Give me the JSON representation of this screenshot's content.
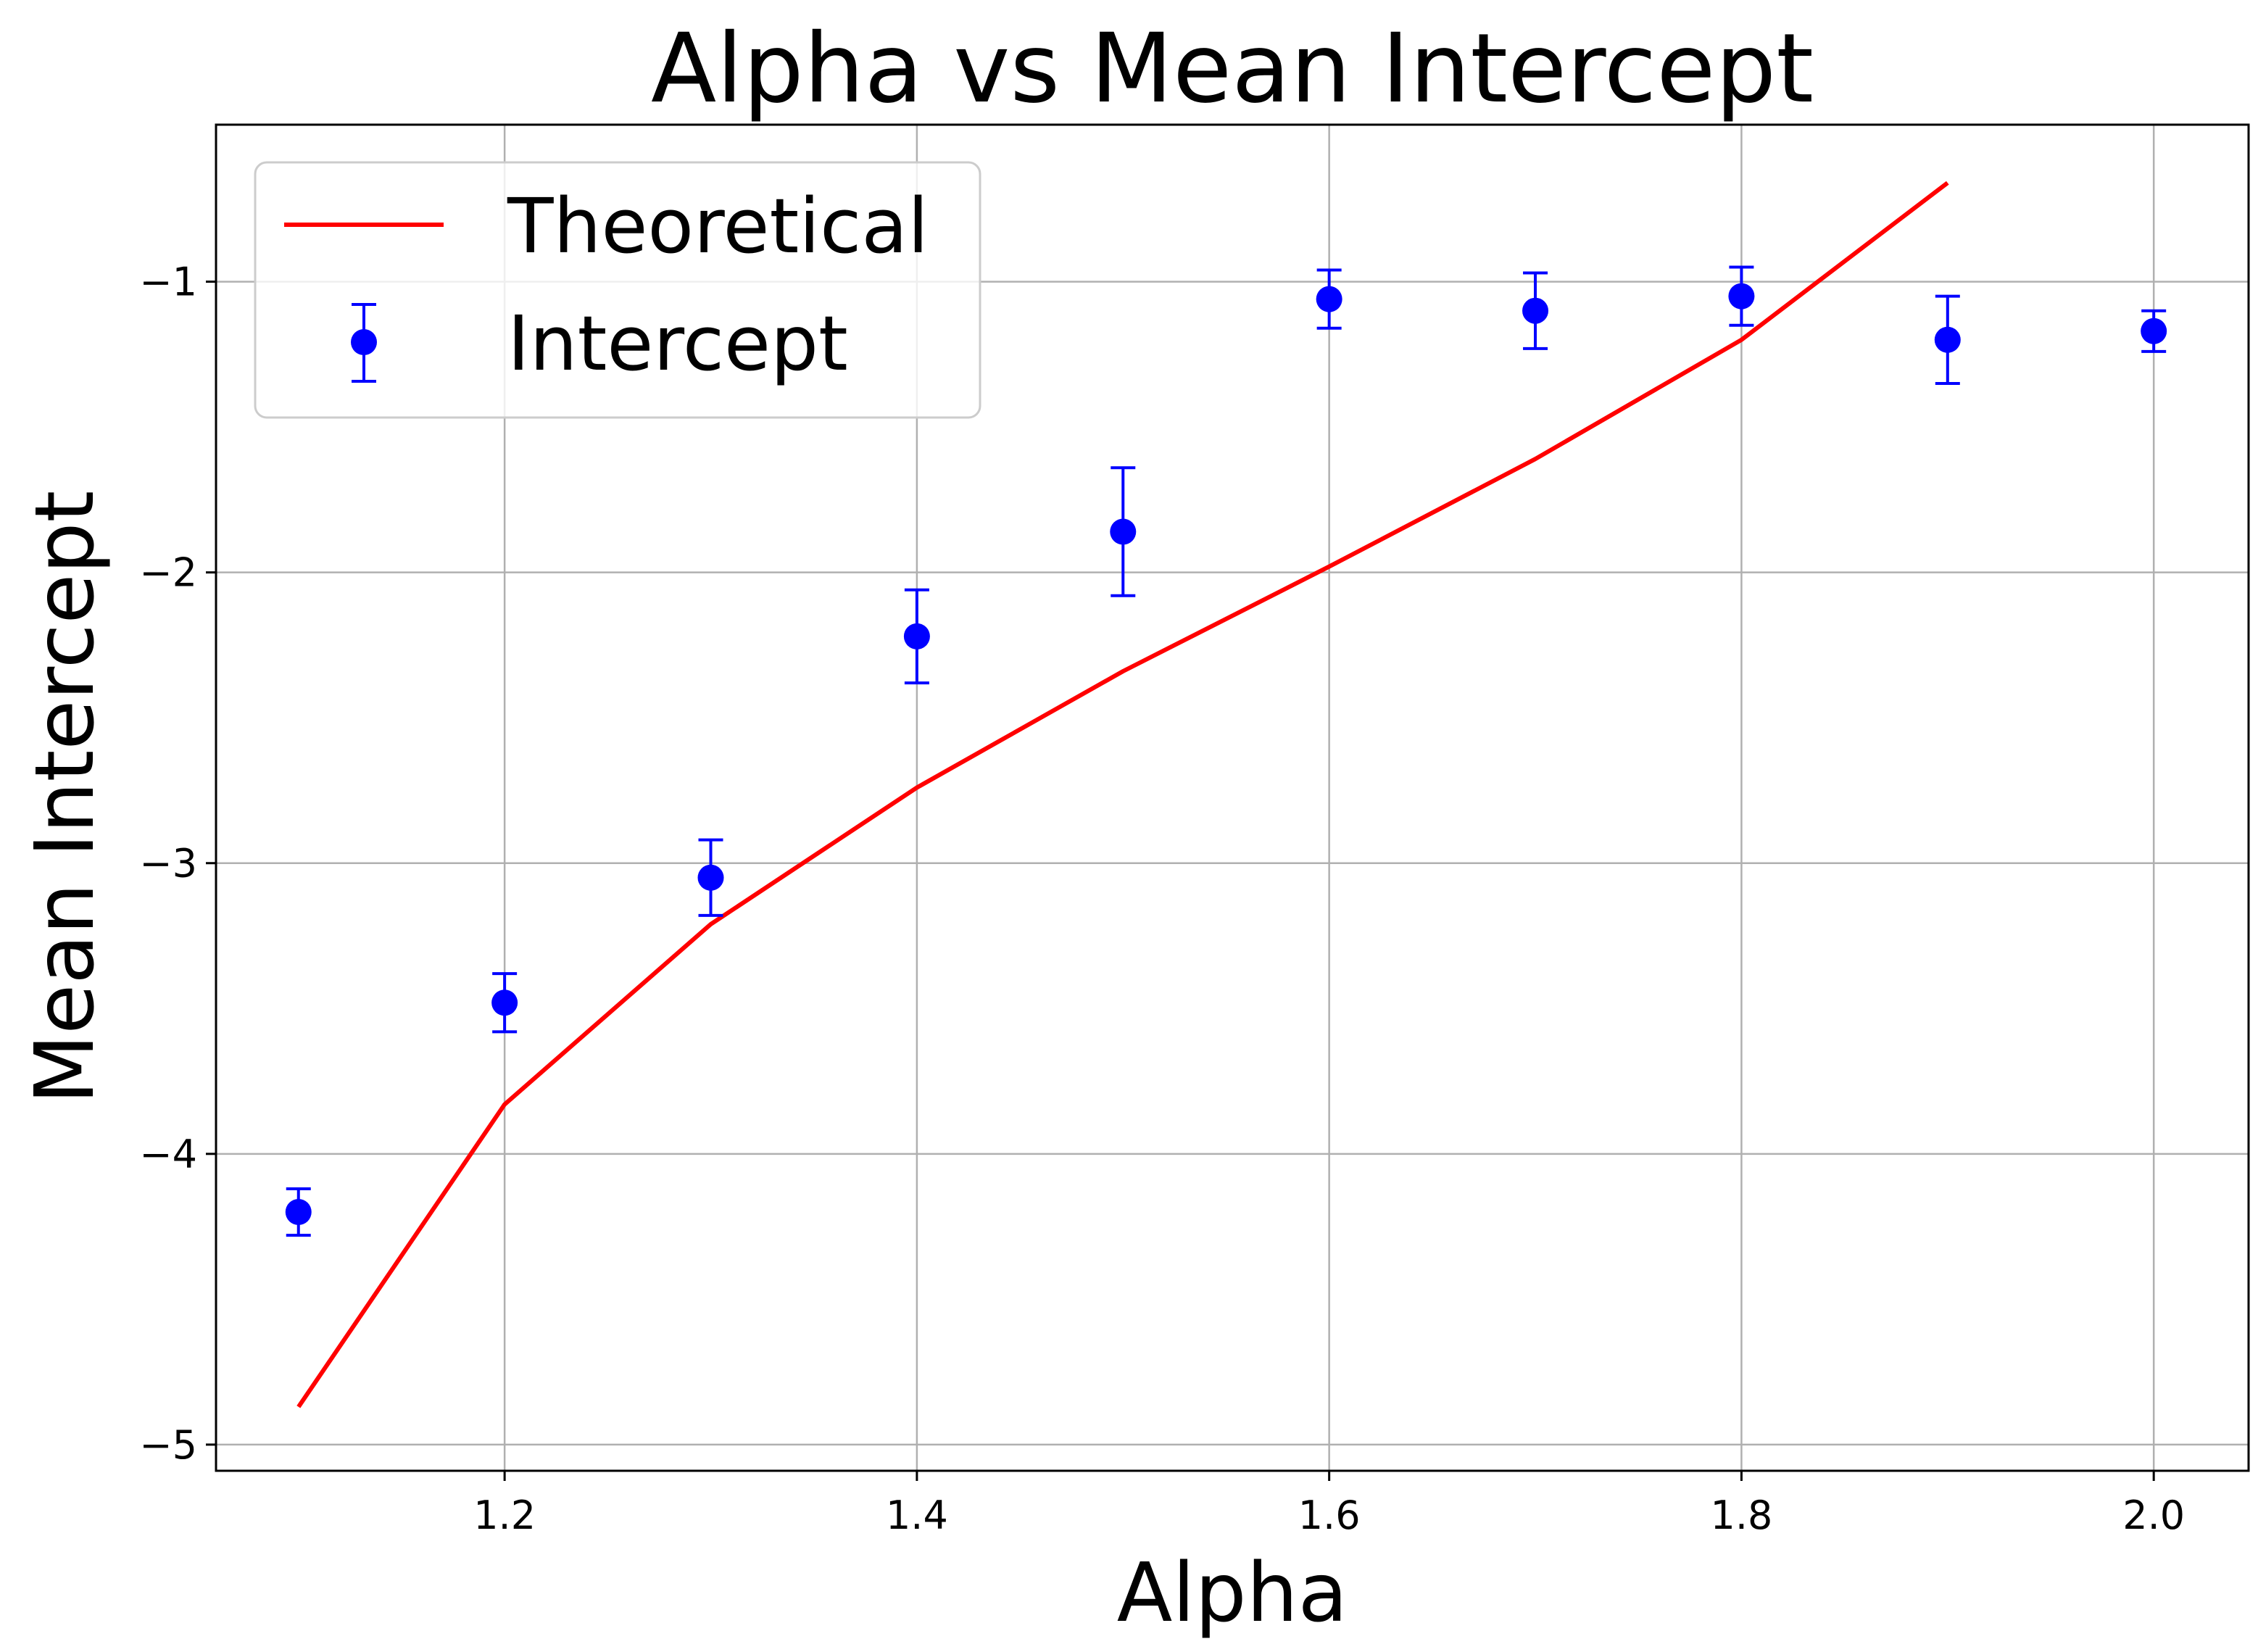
{
  "chart_data": {
    "type": "scatter",
    "title": "Alpha vs Mean Intercept",
    "xlabel": "Alpha",
    "ylabel": "Mean Intercept",
    "xlim": [
      1.06,
      2.046
    ],
    "ylim": [
      -5.09,
      -0.46
    ],
    "x_ticks": [
      1.2,
      1.4,
      1.6,
      1.8,
      2.0
    ],
    "x_tick_labels": [
      "1.2",
      "1.4",
      "1.6",
      "1.8",
      "2.0"
    ],
    "y_ticks": [
      -5,
      -4,
      -3,
      -2,
      -1
    ],
    "y_tick_labels": [
      "−5",
      "−4",
      "−3",
      "−2",
      "−1"
    ],
    "grid": true,
    "legend": {
      "placement": "top-left",
      "entries": [
        "Theoretical",
        "Intercept"
      ]
    },
    "series": [
      {
        "name": "Theoretical",
        "kind": "line",
        "color": "#ff0000",
        "x": [
          1.1,
          1.2,
          1.3,
          1.4,
          1.5,
          1.6,
          1.7,
          1.8,
          1.9
        ],
        "y": [
          -4.87,
          -3.83,
          -3.21,
          -2.74,
          -2.34,
          -1.98,
          -1.61,
          -1.2,
          -0.66
        ]
      },
      {
        "name": "Intercept",
        "kind": "errorbar",
        "color": "#0000ff",
        "x": [
          1.1,
          1.2,
          1.3,
          1.4,
          1.5,
          1.6,
          1.7,
          1.8,
          1.9,
          2.0
        ],
        "y": [
          -4.2,
          -3.48,
          -3.05,
          -2.22,
          -1.86,
          -1.06,
          -1.1,
          -1.05,
          -1.2,
          -1.17
        ],
        "yerr": [
          0.08,
          0.1,
          0.13,
          0.16,
          0.22,
          0.1,
          0.13,
          0.1,
          0.15,
          0.07
        ]
      }
    ]
  }
}
